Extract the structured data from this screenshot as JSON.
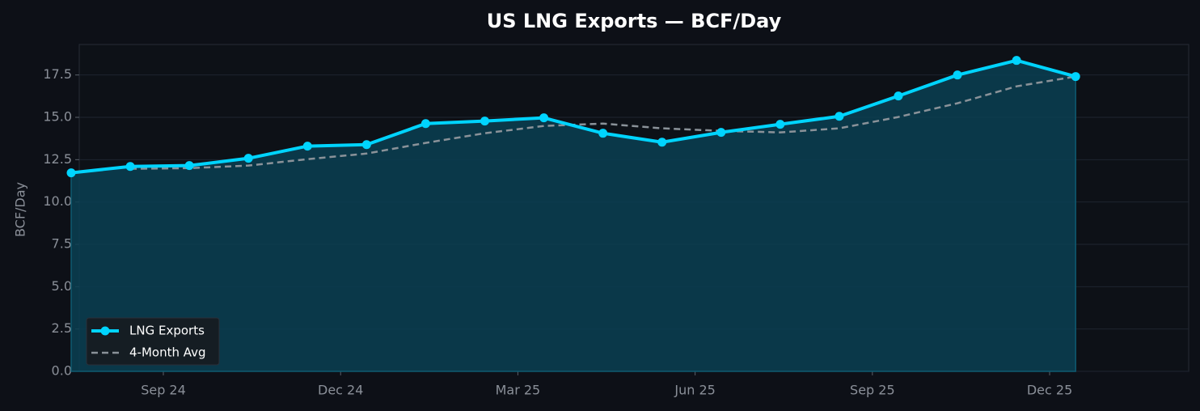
{
  "chart_data": {
    "type": "line",
    "title": "US LNG Exports — BCF/Day",
    "y_label": "BCF/Day",
    "x": [
      "2024-08",
      "2024-09",
      "2024-10",
      "2024-11",
      "2024-12",
      "2025-01",
      "2025-02",
      "2025-03",
      "2025-04",
      "2025-05",
      "2025-06",
      "2025-07",
      "2025-08",
      "2025-09",
      "2025-10",
      "2025-11",
      "2025-12",
      "2026-01"
    ],
    "series": [
      {
        "name": "LNG Exports",
        "color": "#00d4ff",
        "style": "solid",
        "markers": true,
        "fill": "#0a3f52",
        "values": [
          11.72,
          12.1,
          12.15,
          12.58,
          13.3,
          13.39,
          14.63,
          14.78,
          14.97,
          14.06,
          13.53,
          14.11,
          14.59,
          15.06,
          16.26,
          17.5,
          18.36,
          17.41
        ]
      },
      {
        "name": "4-Month Avg",
        "color": "#8a9299",
        "style": "dashed",
        "markers": false,
        "values": [
          null,
          11.96,
          12.0,
          12.15,
          12.53,
          12.86,
          13.49,
          14.06,
          14.49,
          14.63,
          14.35,
          14.2,
          14.11,
          14.35,
          15.02,
          15.83,
          16.83,
          17.41
        ]
      }
    ],
    "xticks": [
      {
        "value": "2024-09",
        "label": "Sep 24"
      },
      {
        "value": "2024-12",
        "label": "Dec 24"
      },
      {
        "value": "2025-03",
        "label": "Mar 25"
      },
      {
        "value": "2025-06",
        "label": "Jun 25"
      },
      {
        "value": "2025-09",
        "label": "Sep 25"
      },
      {
        "value": "2025-12",
        "label": "Dec 25"
      }
    ],
    "ylim": [
      0,
      19.3
    ],
    "yticks": [
      {
        "value": 0,
        "label": "0.0"
      },
      2.5,
      {
        "value": 5,
        "label": "5.0"
      },
      7.5,
      {
        "value": 10,
        "label": "10.0"
      },
      12.5,
      {
        "value": 15,
        "label": "15.0"
      },
      17.5
    ],
    "grid": true,
    "legend": "lower-left"
  }
}
